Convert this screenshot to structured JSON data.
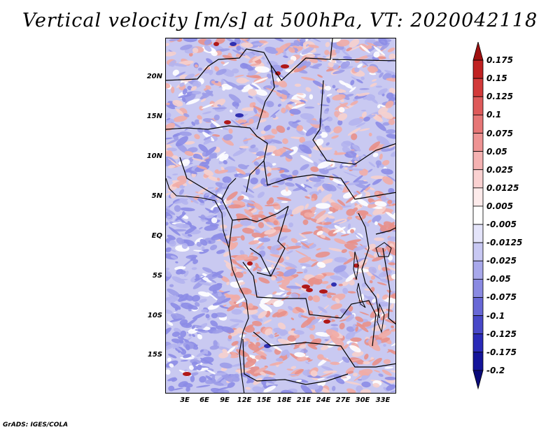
{
  "title": "Vertical velocity [m/s] at 500hPa, VT: 2020042118",
  "credit": "GrADS: IGES/COLA",
  "lat_ticks": [
    "20N",
    "15N",
    "10N",
    "5N",
    "EQ",
    "5S",
    "10S",
    "15S"
  ],
  "lon_ticks": [
    "3E",
    "6E",
    "9E",
    "12E",
    "15E",
    "18E",
    "21E",
    "24E",
    "27E",
    "30E",
    "33E"
  ],
  "colorbar": {
    "labels": [
      "0.175",
      "0.15",
      "0.125",
      "0.1",
      "0.075",
      "0.05",
      "0.025",
      "0.0125",
      "0.005",
      "-0.005",
      "-0.0125",
      "-0.025",
      "-0.05",
      "-0.075",
      "-0.1",
      "-0.125",
      "-0.175",
      "-0.2"
    ],
    "colors": [
      "#a01010",
      "#c02222",
      "#d23a3a",
      "#de5a5a",
      "#e67676",
      "#ee9393",
      "#f5b2b2",
      "#fad1d1",
      "#fdebeb",
      "#ffffff",
      "#e4e4fa",
      "#c8c8f3",
      "#a8a8eb",
      "#8a8ae2",
      "#6868d6",
      "#4848c8",
      "#2a2ab8",
      "#14149a",
      "#0a0a7a"
    ]
  },
  "field_colors": {
    "positive": "#e8908a",
    "negative": "#8c8ce6",
    "neutral": "#ffffff",
    "strong_positive": "#b01818",
    "strong_negative": "#3030b0"
  }
}
